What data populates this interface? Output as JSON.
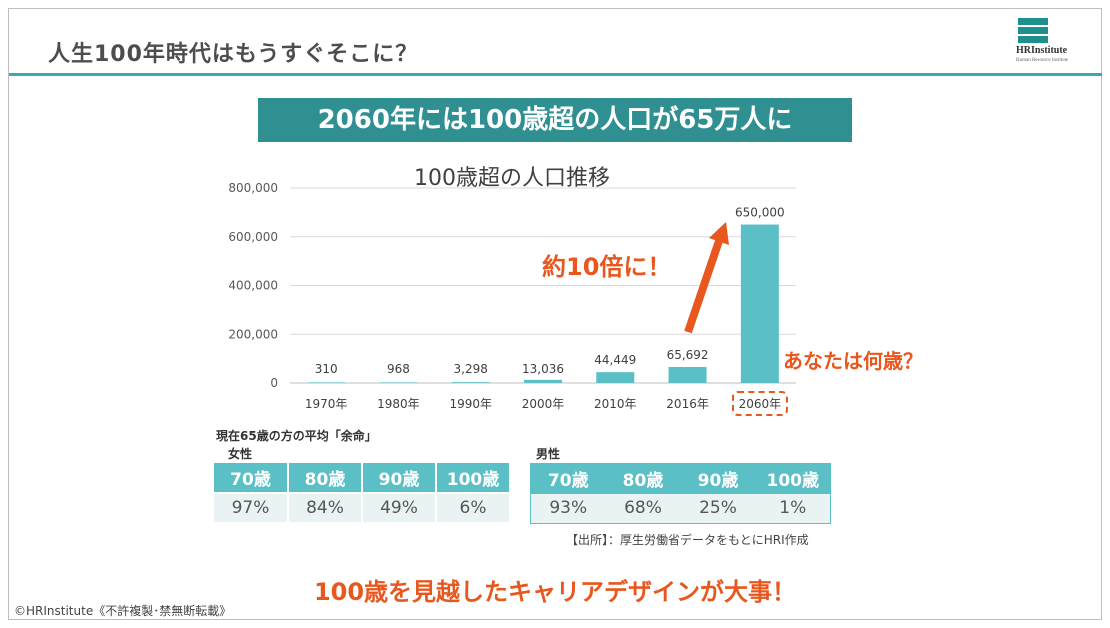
{
  "header": {
    "title": "人生100年時代はもうすぐそこに？",
    "logo_name": "HRInstitute",
    "logo_sub": "Human Resource Institute"
  },
  "banner": "2060年には100歳超の人口が65万人に",
  "chart_data": {
    "type": "bar",
    "title": "100歳超の人口推移",
    "categories": [
      "1970年",
      "1980年",
      "1990年",
      "2000年",
      "2010年",
      "2016年",
      "2060年"
    ],
    "values": [
      310,
      968,
      3298,
      13036,
      44449,
      65692,
      650000
    ],
    "data_labels": [
      "310",
      "968",
      "3,298",
      "13,036",
      "44,449",
      "65,692",
      "650,000"
    ],
    "y_ticks": [
      0,
      200000,
      400000,
      600000,
      800000
    ],
    "y_tick_labels": [
      "0",
      "200,000",
      "400,000",
      "600,000",
      "800,000"
    ],
    "ylim": [
      0,
      800000
    ],
    "grid": true,
    "bar_color": "#5bbfc6"
  },
  "callouts": {
    "growth": "約10倍に！",
    "question": "あなたは何歳？"
  },
  "life_table": {
    "title": "現在65歳の方の平均「余命」",
    "female": {
      "label": "女性",
      "headers": [
        "70歳",
        "80歳",
        "90歳",
        "100歳"
      ],
      "values": [
        "97%",
        "84%",
        "49%",
        "6%"
      ]
    },
    "male": {
      "label": "男性",
      "headers": [
        "70歳",
        "80歳",
        "90歳",
        "100歳"
      ],
      "values": [
        "93%",
        "68%",
        "25%",
        "1%"
      ]
    }
  },
  "source": "【出所】：厚生労働省データをもとにHRI作成",
  "bottom_message": "100歳を見越したキャリアデザインが大事！",
  "copyright": "©HRInstitute《不許複製･禁無断転載》",
  "colors": {
    "accent": "#e8581e",
    "teal": "#2f8f91",
    "bar": "#5bbfc6"
  }
}
